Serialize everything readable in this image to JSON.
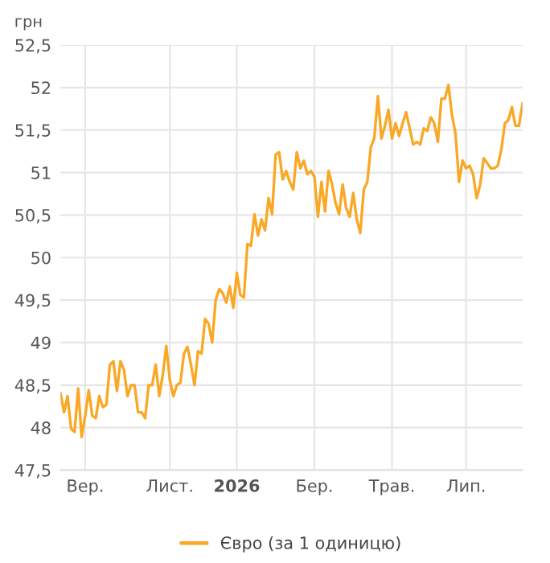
{
  "chart_data": {
    "type": "line",
    "ylabel": "грн",
    "legend": "bottom",
    "grid": true,
    "marker": "none",
    "line_style": "solid",
    "categories": [
      null,
      null,
      null,
      null,
      null,
      null,
      null,
      "Вер.",
      null,
      null,
      null,
      null,
      null,
      null,
      null,
      null,
      null,
      null,
      null,
      null,
      null,
      null,
      null,
      null,
      null,
      null,
      null,
      null,
      null,
      null,
      null,
      "Лист.",
      null,
      null,
      null,
      null,
      null,
      null,
      null,
      null,
      null,
      null,
      null,
      null,
      null,
      null,
      null,
      null,
      null,
      null,
      "2026",
      null,
      null,
      null,
      null,
      null,
      null,
      null,
      null,
      null,
      null,
      null,
      null,
      null,
      null,
      null,
      null,
      null,
      null,
      null,
      null,
      null,
      "Бер.",
      null,
      null,
      null,
      null,
      null,
      null,
      null,
      null,
      null,
      null,
      null,
      null,
      null,
      null,
      null,
      null,
      null,
      null,
      null,
      null,
      null,
      "Трав.",
      null,
      null,
      null,
      null,
      null,
      null,
      null,
      null,
      null,
      null,
      null,
      null,
      null,
      null,
      null,
      null,
      null,
      null,
      null,
      null,
      "Лип.",
      null,
      null,
      null,
      null,
      null,
      null,
      null,
      null,
      null,
      null,
      null,
      null,
      null,
      null,
      null,
      null
    ],
    "ylim": [
      47.5,
      52.5
    ],
    "yticks": [
      {
        "value": 47.5,
        "label": "47,5"
      },
      48,
      {
        "value": 48.5,
        "label": "48,5"
      },
      49,
      {
        "value": 49.5,
        "label": "49,5"
      },
      50,
      {
        "value": 50.5,
        "label": "50,5"
      },
      51,
      {
        "value": 51.5,
        "label": "51,5"
      },
      52,
      {
        "value": 52.5,
        "label": "52,5"
      }
    ],
    "series": [
      {
        "name": "Євро (за 1 одиницю)",
        "color": "#f9a825",
        "values": [
          48.4,
          48.18,
          48.37,
          47.99,
          47.95,
          48.46,
          47.89,
          48.14,
          48.44,
          48.14,
          48.11,
          48.37,
          48.24,
          48.27,
          48.74,
          48.78,
          48.43,
          48.78,
          48.68,
          48.37,
          48.5,
          48.5,
          48.18,
          48.18,
          48.11,
          48.5,
          48.5,
          48.74,
          48.37,
          48.62,
          48.96,
          48.56,
          48.37,
          48.5,
          48.53,
          48.87,
          48.95,
          48.74,
          48.5,
          48.9,
          48.87,
          49.28,
          49.22,
          49.0,
          49.5,
          49.63,
          49.58,
          49.47,
          49.66,
          49.41,
          49.82,
          49.56,
          49.53,
          50.16,
          50.14,
          50.51,
          50.26,
          50.45,
          50.32,
          50.7,
          50.51,
          51.21,
          51.24,
          50.92,
          51.02,
          50.89,
          50.8,
          51.24,
          51.05,
          51.14,
          50.98,
          51.02,
          50.95,
          50.48,
          50.89,
          50.54,
          51.02,
          50.86,
          50.64,
          50.51,
          50.86,
          50.58,
          50.48,
          50.76,
          50.45,
          50.29,
          50.8,
          50.89,
          51.3,
          51.41,
          51.9,
          51.4,
          51.55,
          51.74,
          51.4,
          51.58,
          51.43,
          51.58,
          51.71,
          51.52,
          51.33,
          51.36,
          51.33,
          51.52,
          51.49,
          51.65,
          51.58,
          51.36,
          51.87,
          51.87,
          52.03,
          51.68,
          51.46,
          50.89,
          51.14,
          51.05,
          51.08,
          50.98,
          50.7,
          50.86,
          51.17,
          51.11,
          51.05,
          51.05,
          51.08,
          51.27,
          51.58,
          51.62,
          51.77,
          51.55,
          51.55,
          51.81
        ]
      }
    ]
  }
}
